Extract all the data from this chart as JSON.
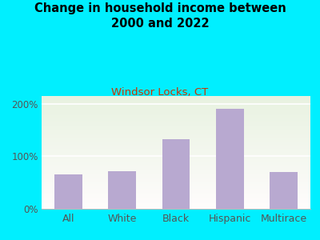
{
  "title": "Change in household income between\n2000 and 2022",
  "subtitle": "Windsor Locks, CT",
  "categories": [
    "All",
    "White",
    "Black",
    "Hispanic",
    "Multirace"
  ],
  "values": [
    65,
    72,
    133,
    190,
    70
  ],
  "bar_color": "#b8a9d0",
  "title_fontsize": 10.5,
  "title_fontweight": "bold",
  "subtitle_fontsize": 9.5,
  "subtitle_color": "#cc3300",
  "background_outer": "#00efff",
  "yticks": [
    0,
    100,
    200
  ],
  "ytick_labels": [
    "0%",
    "100%",
    "200%"
  ],
  "ylim": [
    0,
    215
  ],
  "tick_color": "#555555",
  "tick_fontsize": 8.5,
  "xtick_fontsize": 9
}
